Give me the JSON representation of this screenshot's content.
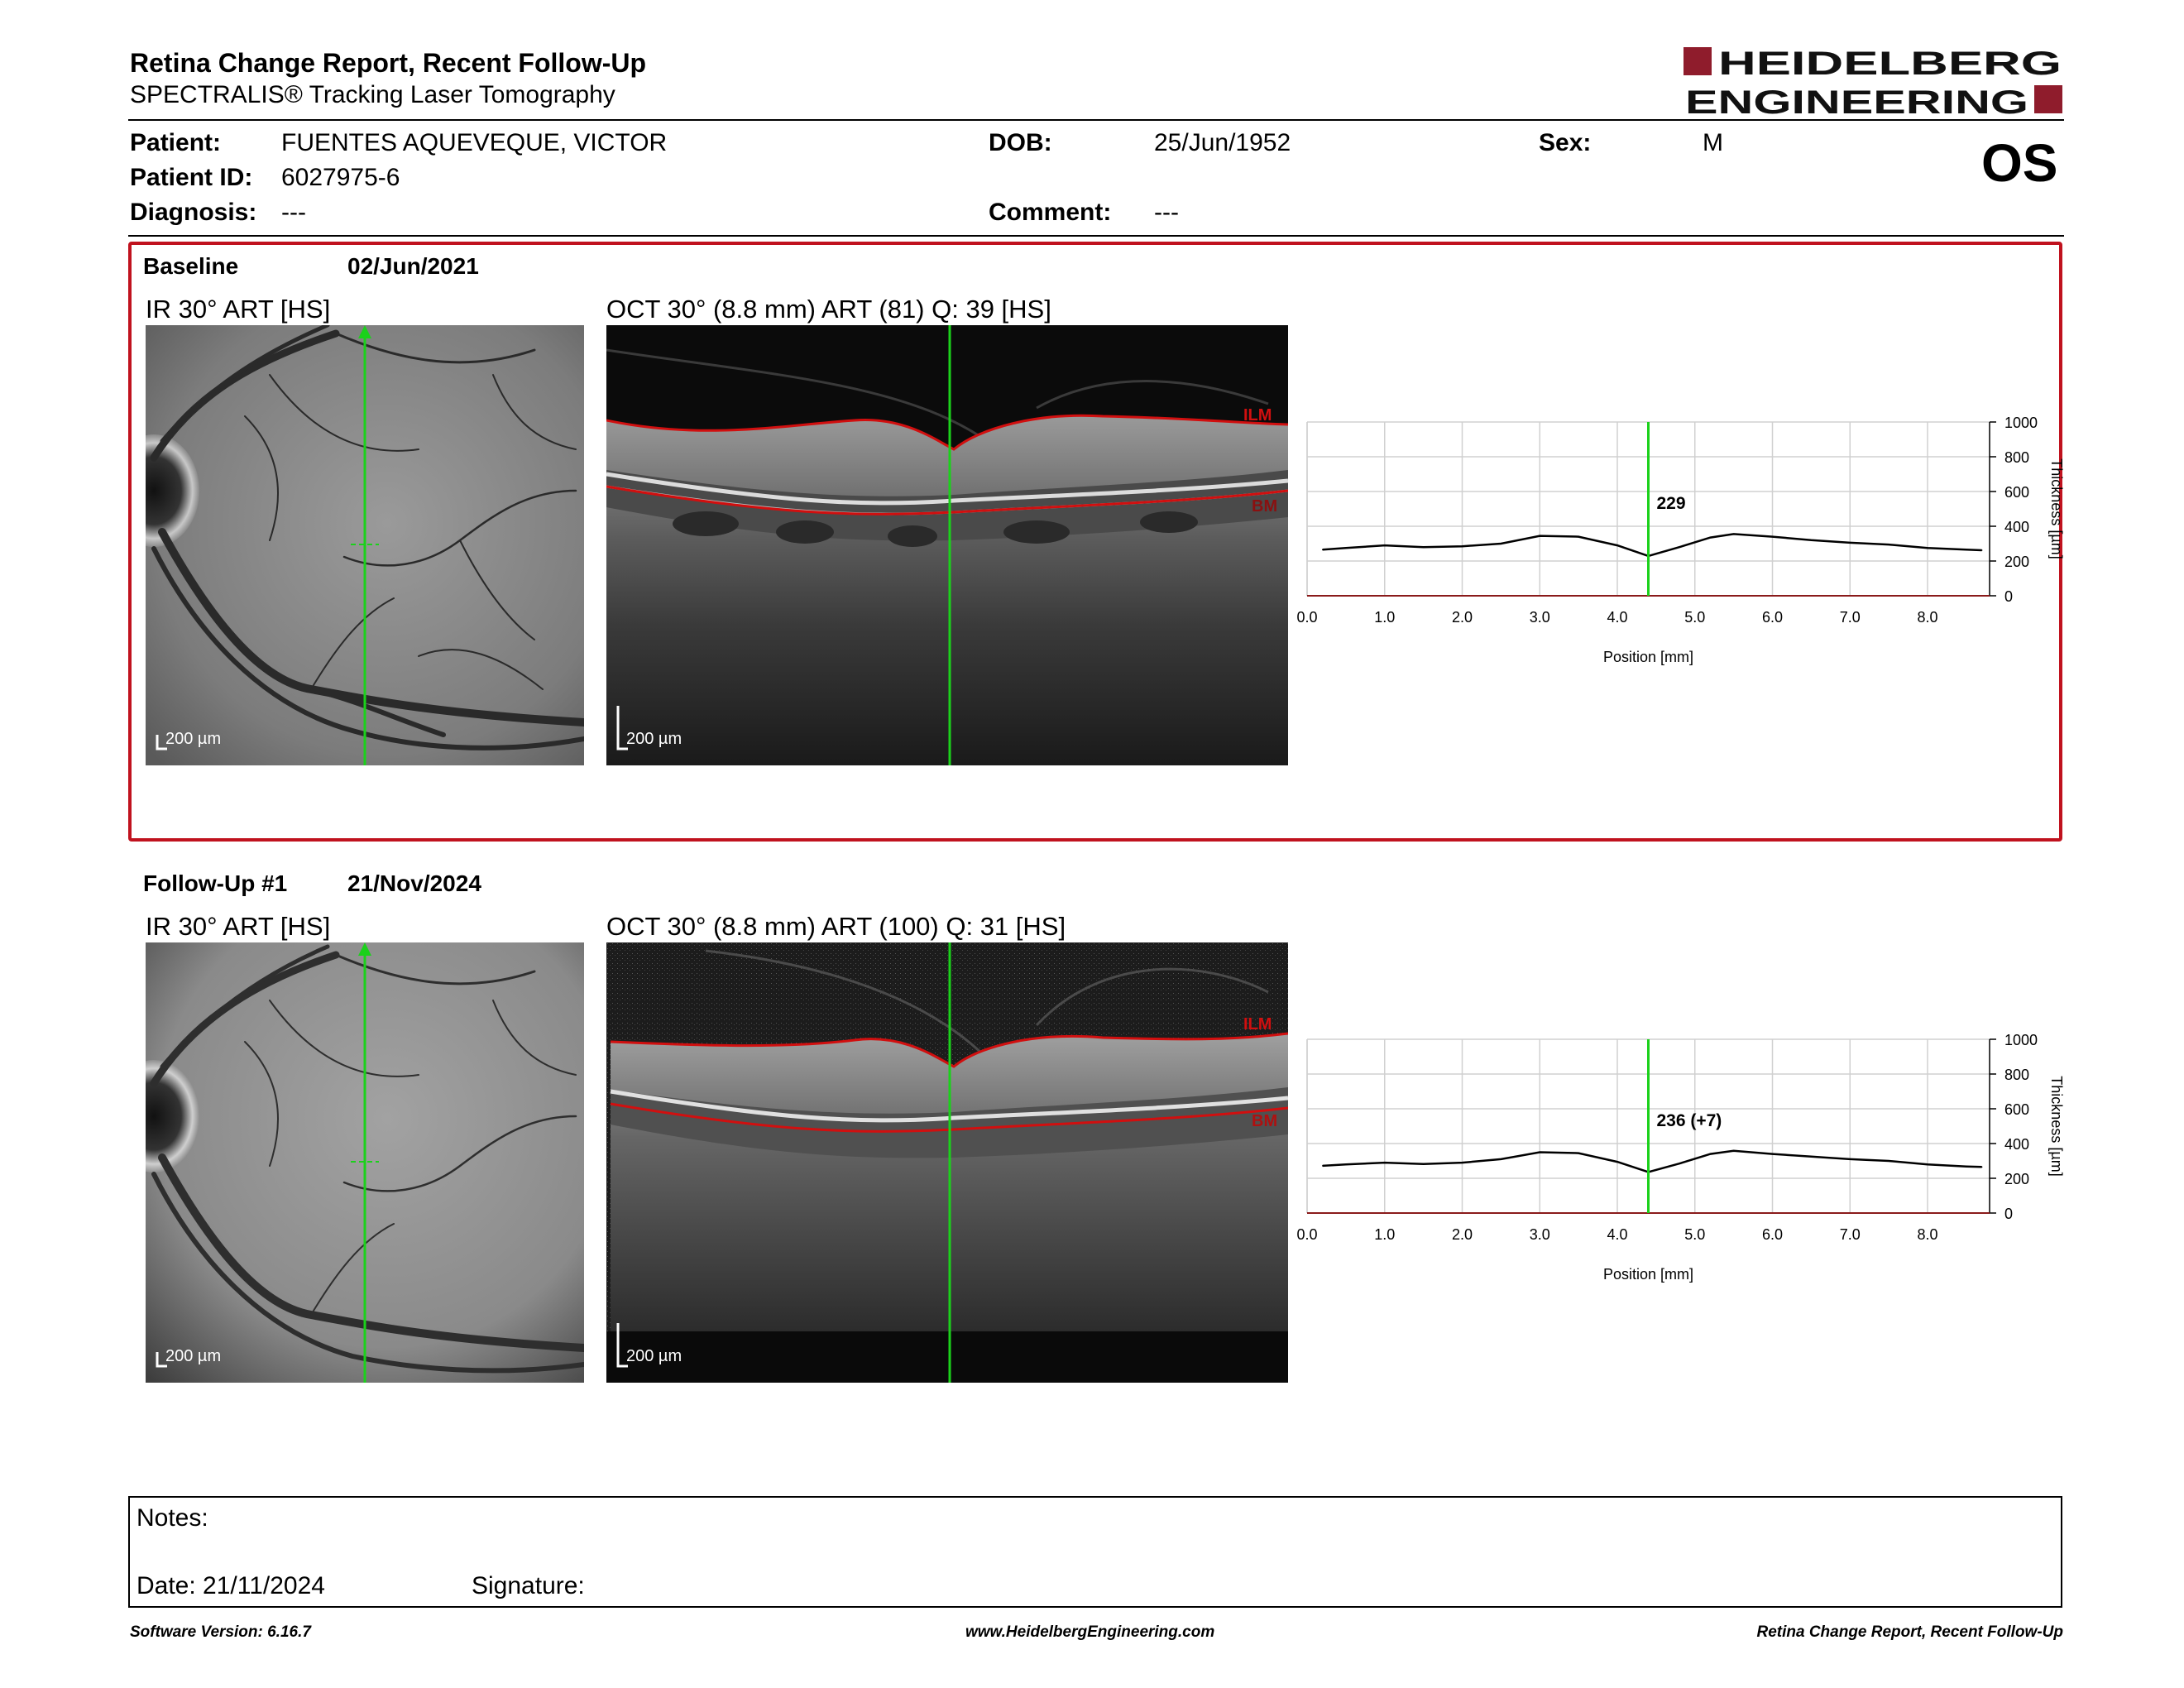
{
  "header": {
    "title": "Retina Change Report, Recent Follow-Up",
    "subtitle": "SPECTRALIS® Tracking Laser Tomography",
    "logo_line1": "HEIDELBERG",
    "logo_line2": "ENGINEERING",
    "eye": "OS"
  },
  "patient": {
    "patient_label": "Patient:",
    "patient_value": "FUENTES AQUEVEQUE, VICTOR",
    "dob_label": "DOB:",
    "dob_value": "25/Jun/1952",
    "sex_label": "Sex:",
    "sex_value": "M",
    "id_label": "Patient ID:",
    "id_value": "6027975-6",
    "diagnosis_label": "Diagnosis:",
    "diagnosis_value": "---",
    "comment_label": "Comment:",
    "comment_value": "---"
  },
  "baseline": {
    "label": "Baseline",
    "date": "02/Jun/2021",
    "ir_label": "IR 30° ART [HS]",
    "oct_label": "OCT 30° (8.8 mm) ART (81) Q: 39 [HS]",
    "ir_scale": "200 µm",
    "oct_scale": "200 µm",
    "ilm": "ILM",
    "bm": "BM",
    "marker_value": "229"
  },
  "followup": {
    "label": "Follow-Up #1",
    "date": "21/Nov/2024",
    "ir_label": "IR 30° ART [HS]",
    "oct_label": "OCT 30° (8.8 mm) ART (100) Q: 31 [HS]",
    "ir_scale": "200 µm",
    "oct_scale": "200 µm",
    "ilm": "ILM",
    "bm": "BM",
    "marker_value": "236 (+7)"
  },
  "chart_data": [
    {
      "type": "line",
      "xlabel": "Position [mm]",
      "ylabel": "Thickness [µm]",
      "xticks": [
        "0.0",
        "1.0",
        "2.0",
        "3.0",
        "4.0",
        "5.0",
        "6.0",
        "7.0",
        "8.0"
      ],
      "yticks": [
        "0",
        "200",
        "400",
        "600",
        "800",
        "1000"
      ],
      "xlim": [
        0,
        8.8
      ],
      "ylim": [
        0,
        1000
      ],
      "grid": true,
      "marker_x": 4.4,
      "x": [
        0.2,
        0.5,
        1.0,
        1.5,
        2.0,
        2.5,
        3.0,
        3.5,
        4.0,
        4.4,
        4.8,
        5.2,
        5.5,
        6.0,
        6.5,
        7.0,
        7.5,
        8.0,
        8.5,
        8.7
      ],
      "y": [
        265,
        275,
        290,
        280,
        285,
        300,
        345,
        340,
        290,
        229,
        280,
        335,
        355,
        340,
        320,
        305,
        295,
        275,
        265,
        262
      ]
    },
    {
      "type": "line",
      "xlabel": "Position [mm]",
      "ylabel": "Thickness [µm]",
      "xticks": [
        "0.0",
        "1.0",
        "2.0",
        "3.0",
        "4.0",
        "5.0",
        "6.0",
        "7.0",
        "8.0"
      ],
      "yticks": [
        "0",
        "200",
        "400",
        "600",
        "800",
        "1000"
      ],
      "xlim": [
        0,
        8.8
      ],
      "ylim": [
        0,
        1000
      ],
      "grid": true,
      "marker_x": 4.4,
      "x": [
        0.2,
        0.5,
        1.0,
        1.5,
        2.0,
        2.5,
        3.0,
        3.5,
        4.0,
        4.4,
        4.8,
        5.2,
        5.5,
        6.0,
        6.5,
        7.0,
        7.5,
        8.0,
        8.5,
        8.7
      ],
      "y": [
        272,
        280,
        290,
        282,
        290,
        310,
        350,
        345,
        295,
        236,
        285,
        340,
        358,
        340,
        325,
        310,
        300,
        280,
        268,
        265
      ]
    }
  ],
  "notes": {
    "notes_label": "Notes:",
    "date_label": "Date: 21/11/2024",
    "signature_label": "Signature:"
  },
  "footer": {
    "left": "Software Version: 6.16.7",
    "center": "www.HeidelbergEngineering.com",
    "right": "Retina Change Report, Recent Follow-Up"
  }
}
